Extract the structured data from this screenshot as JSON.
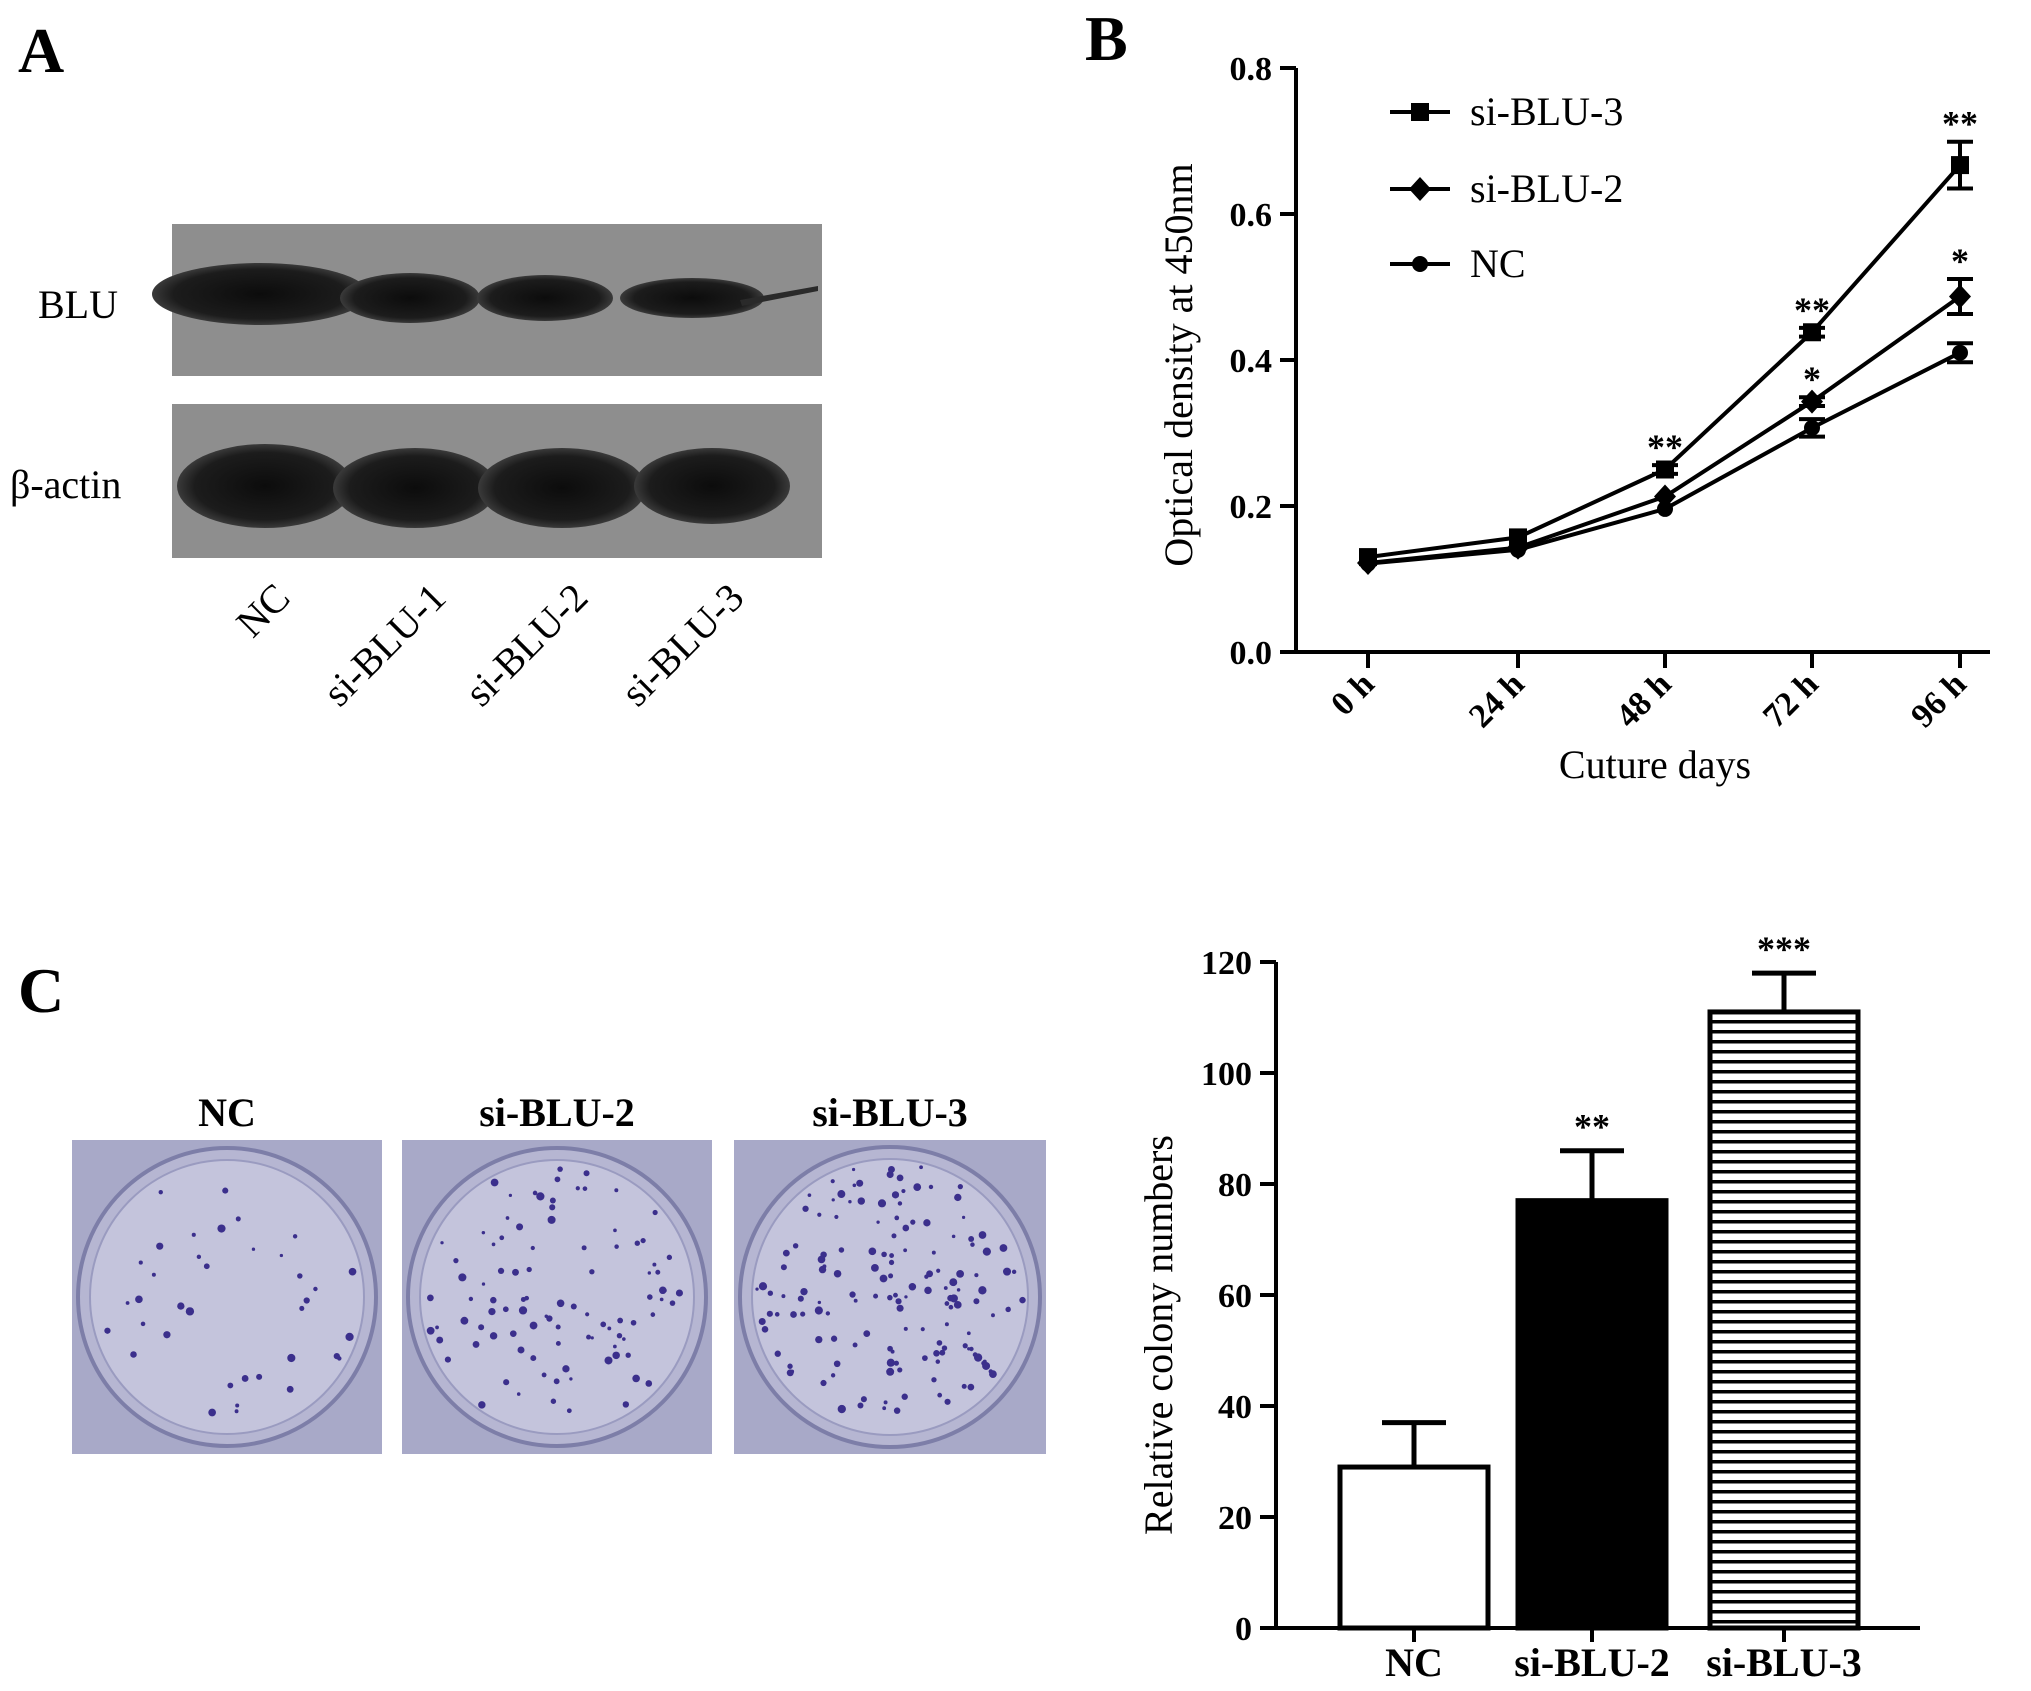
{
  "panels": {
    "a": {
      "letter": "A",
      "row_labels": [
        "BLU",
        "β-actin"
      ],
      "lane_labels": [
        "NC",
        "si-BLU-1",
        "si-BLU-2",
        "si-BLU-3"
      ]
    },
    "b": {
      "letter": "B"
    },
    "c": {
      "letter": "C",
      "plate_labels": [
        "NC",
        "si-BLU-2",
        "si-BLU-3"
      ]
    }
  },
  "colors": {
    "ink": "#000000",
    "blot_bg": "#8e8e8e",
    "plate_bg": "#a8a9c8",
    "plate_inner": "#c4c4dc",
    "colony": "#3b2f8c"
  },
  "chart_data": [
    {
      "type": "line",
      "title": "",
      "xlabel": "Cuture days",
      "ylabel": "Optical density at 450nm",
      "ylim": [
        0,
        0.8
      ],
      "yticks": [
        "0.0",
        "0.2",
        "0.4",
        "0.6",
        "0.8"
      ],
      "categories": [
        "0 h",
        "24 h",
        "48 h",
        "72 h",
        "96 h"
      ],
      "legend_position": "top-left",
      "series": [
        {
          "name": "si-BLU-3",
          "marker": "square",
          "values": [
            0.13,
            0.157,
            0.25,
            0.438,
            0.667
          ],
          "errors": [
            0.004,
            0.004,
            0.006,
            0.006,
            0.032
          ],
          "annotations": [
            "",
            "",
            "**",
            "**",
            "**"
          ]
        },
        {
          "name": "si-BLU-2",
          "marker": "diamond",
          "values": [
            0.122,
            0.143,
            0.213,
            0.343,
            0.487
          ],
          "errors": [
            0.004,
            0.004,
            0.005,
            0.006,
            0.024
          ],
          "annotations": [
            "",
            "",
            "",
            "*",
            "*"
          ]
        },
        {
          "name": "NC",
          "marker": "circle",
          "values": [
            0.121,
            0.14,
            0.196,
            0.307,
            0.41
          ],
          "errors": [
            0.004,
            0.004,
            0.005,
            0.012,
            0.013
          ],
          "annotations": [
            "",
            "",
            "",
            "",
            ""
          ]
        }
      ]
    },
    {
      "type": "bar",
      "title": "",
      "xlabel": "",
      "ylabel": "Relative colony numbers",
      "ylim": [
        0,
        120
      ],
      "yticks": [
        "0",
        "20",
        "40",
        "60",
        "80",
        "100",
        "120"
      ],
      "categories": [
        "NC",
        "si-BLU-2",
        "si-BLU-3"
      ],
      "values": [
        29,
        77,
        111
      ],
      "errors": [
        8,
        9,
        7
      ],
      "fills": [
        "white",
        "black",
        "horizontal-stripes"
      ],
      "annotations": [
        "",
        "**",
        "***"
      ]
    }
  ]
}
